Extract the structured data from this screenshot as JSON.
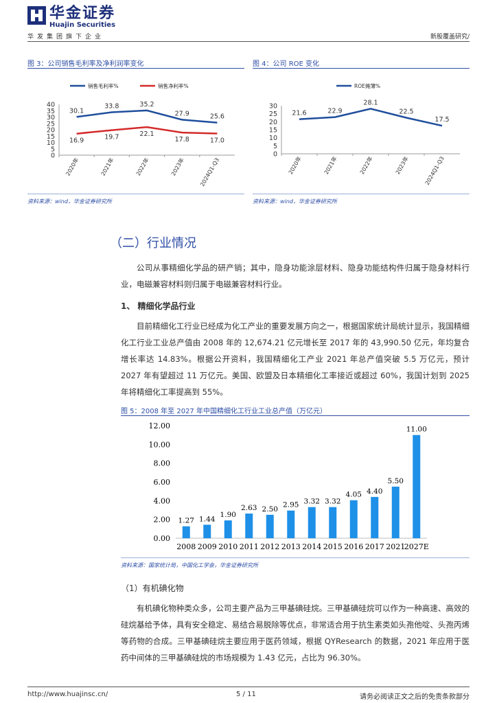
{
  "header": {
    "company_cn": "华金证券",
    "company_en": "Huajin Securities",
    "group_line": "华发集团旗下企业",
    "doc_type": "新股覆盖研究/"
  },
  "figures": {
    "fig3_caption": "图 3：公司销售毛利率及净利润率变化",
    "fig4_caption": "图 4：公司 ROE 变化",
    "fig5_caption": "图 5：2008 年至 2027 年中国精细化工行业工业总产值（万亿元）",
    "fig3_source": "资料来源：wind，华金证券研究所",
    "fig4_source": "资料来源：wind，华金证券研究所",
    "fig5_source": "资料来源：国家统计局，中国化工学会，华金证券研究所"
  },
  "section": {
    "title": "（二）行业情况",
    "intro": "公司从事精细化学品的研产销；其中，隐身功能涂层材料、隐身功能结构件归属于隐身材料行业，电磁兼容材料则归属于电磁兼容材料行业。",
    "sub1_title": "1、 精细化学品行业",
    "sub1_para": "目前精细化工行业已经成为化工产业的重要发展方向之一，根据国家统计局统计显示，我国精细化工行业工业总产值由 2008 年的 12,674.21 亿元增长至 2017 年的 43,990.50 亿元，年均复合增长率达 14.83%。根据公开资料，我国精细化工产业 2021 年总产值突破 5.5 万亿元，预计 2027 年有望超过 11 万亿元。美国、欧盟及日本精细化工率接近或超过 60%，我国计划到 2025 年将精细化工率提高到 55%。",
    "sub2_title": "（1）有机碘化物",
    "sub2_para": "有机碘化物种类众多，公司主要产品为三甲基碘硅烷。三甲基碘硅烷可以作为一种高速、高效的硅烷基给予体，具有安全稳定、易结合易脱除等优点，非常适合用于抗生素类如头孢他啶、头孢丙烯等药物的合成。三甲基碘硅烷主要应用于医药领域，根据 QYResearch 的数据，2021 年应用于医药中间体的三甲基碘硅烷的市场规模为 1.43 亿元，占比为 96.30%。"
  },
  "footer": {
    "url": "http://www.huajinsc.cn/",
    "page": "5 / 11",
    "note": "请务必阅读正文之后的免责条款部分"
  },
  "chart_data": [
    {
      "type": "line",
      "title": "公司销售毛利率及净利润率变化",
      "categories": [
        "2020年",
        "2021年",
        "2022年",
        "2023年",
        "2024Q1-Q3"
      ],
      "series": [
        {
          "name": "销售毛利率%",
          "color": "#1f4e9c",
          "values": [
            30.1,
            33.8,
            35.2,
            27.9,
            25.6
          ]
        },
        {
          "name": "销售净利率%",
          "color": "#d42a2a",
          "values": [
            16.9,
            19.7,
            22.1,
            17.8,
            17.0
          ]
        }
      ],
      "ylim": [
        0,
        40
      ],
      "yticks": [
        0,
        5,
        10,
        15,
        20,
        25,
        30,
        35,
        40
      ],
      "legend": "top"
    },
    {
      "type": "line",
      "title": "公司 ROE 变化",
      "categories": [
        "2020年",
        "2021年",
        "2022年",
        "2023年",
        "2024Q1-Q3"
      ],
      "series": [
        {
          "name": "ROE摊薄%",
          "color": "#1f4e9c",
          "values": [
            21.6,
            22.9,
            28.1,
            22.5,
            17.5
          ]
        }
      ],
      "ylim": [
        0,
        30
      ],
      "yticks": [
        0,
        5,
        10,
        15,
        20,
        25,
        30
      ],
      "legend": "top"
    },
    {
      "type": "bar",
      "title": "2008 年至 2027 年中国精细化工行业工业总产值（万亿元）",
      "categories": [
        "2008",
        "2009",
        "2010",
        "2011",
        "2012",
        "2013",
        "2014",
        "2015",
        "2016",
        "2017",
        "2021",
        "2027E"
      ],
      "values": [
        1.27,
        1.44,
        1.9,
        2.63,
        2.5,
        2.95,
        3.32,
        3.32,
        4.05,
        4.4,
        5.5,
        11.0
      ],
      "labels": [
        "1.27",
        "1.44",
        "1.90",
        "2.63",
        "2.50",
        "2.95",
        "3.32",
        "3.32",
        "4.05",
        "4.40",
        "5.50",
        "11.00"
      ],
      "color": "#1e90e8",
      "ylim": [
        0,
        12
      ],
      "yticks": [
        "0.00",
        "2.00",
        "4.00",
        "6.00",
        "8.00",
        "10.00",
        "12.00"
      ]
    }
  ]
}
